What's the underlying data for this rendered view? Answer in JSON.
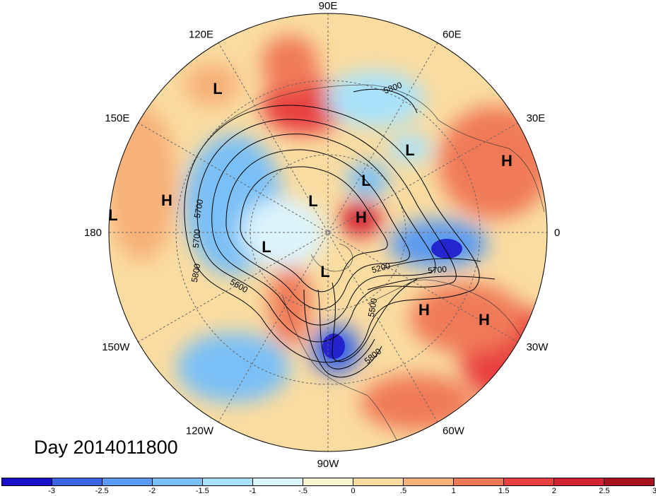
{
  "map": {
    "longitude_labels": [
      {
        "label": "90E",
        "lon": 90
      },
      {
        "label": "60E",
        "lon": 60
      },
      {
        "label": "30E",
        "lon": 30
      },
      {
        "label": "0",
        "lon": 0
      },
      {
        "label": "30W",
        "lon": -30
      },
      {
        "label": "60W",
        "lon": -60
      },
      {
        "label": "90W",
        "lon": -90
      },
      {
        "label": "120W",
        "lon": -120
      },
      {
        "label": "150W",
        "lon": -150
      },
      {
        "label": "180",
        "lon": 180
      },
      {
        "label": "150E",
        "lon": 150
      },
      {
        "label": "120E",
        "lon": 120
      }
    ],
    "pressure_centers": [
      "L",
      "L",
      "L",
      "L",
      "L",
      "L",
      "L",
      "H",
      "H",
      "H",
      "H",
      "H"
    ],
    "contour_labels": [
      "5800",
      "5700",
      "5700",
      "5800",
      "5600",
      "5200",
      "5700",
      "5500",
      "5800"
    ],
    "date_label": "Day 2014011800",
    "colorbar": {
      "ticks": [
        "-3",
        "-2.5",
        "-2",
        "-1.5",
        "-1",
        "-.5",
        "0",
        ".5",
        "1",
        "1.5",
        "2",
        "2.5",
        "3"
      ],
      "colors": [
        "#1a10c8",
        "#3a66e6",
        "#5a9af0",
        "#7ac0f6",
        "#a8e2fa",
        "#dcf4fc",
        "#fcf4d0",
        "#fadca0",
        "#f6b078",
        "#f07a58",
        "#e84040",
        "#d42434",
        "#a8121e"
      ]
    }
  }
}
